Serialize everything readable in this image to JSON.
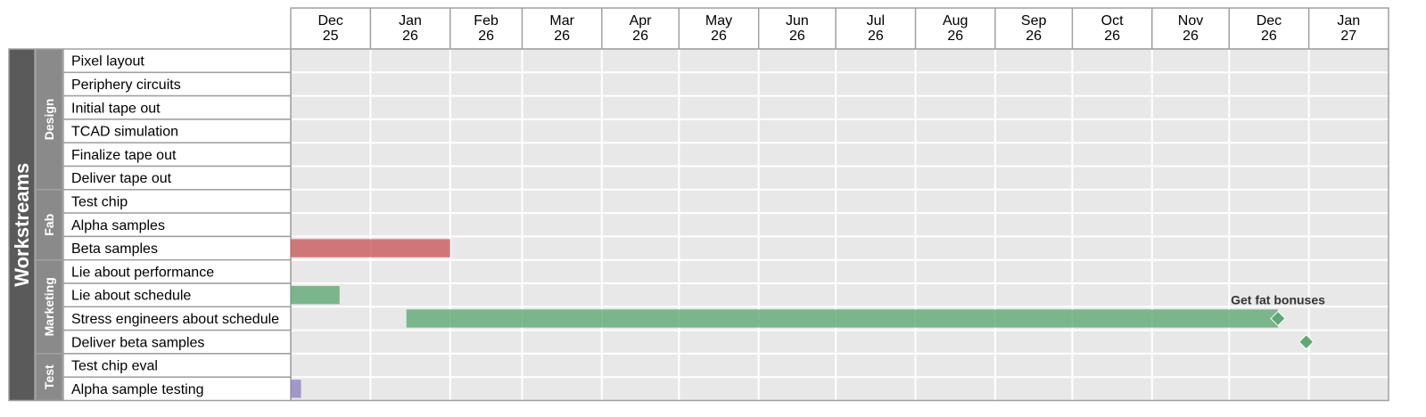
{
  "chart_data": {
    "type": "gantt",
    "top_label": "Workstreams",
    "timeline": {
      "start": "2025-12-01",
      "end": "2027-01-31",
      "ticks": [
        {
          "date": "2025-12-01",
          "month": "Dec",
          "year": "25"
        },
        {
          "date": "2026-01-01",
          "month": "Jan",
          "year": "26"
        },
        {
          "date": "2026-02-01",
          "month": "Feb",
          "year": "26"
        },
        {
          "date": "2026-03-01",
          "month": "Mar",
          "year": "26"
        },
        {
          "date": "2026-04-01",
          "month": "Apr",
          "year": "26"
        },
        {
          "date": "2026-05-01",
          "month": "May",
          "year": "26"
        },
        {
          "date": "2026-06-01",
          "month": "Jun",
          "year": "26"
        },
        {
          "date": "2026-07-01",
          "month": "Jul",
          "year": "26"
        },
        {
          "date": "2026-08-01",
          "month": "Aug",
          "year": "26"
        },
        {
          "date": "2026-09-01",
          "month": "Sep",
          "year": "26"
        },
        {
          "date": "2026-10-01",
          "month": "Oct",
          "year": "26"
        },
        {
          "date": "2026-11-01",
          "month": "Nov",
          "year": "26"
        },
        {
          "date": "2026-12-01",
          "month": "Dec",
          "year": "26"
        },
        {
          "date": "2027-01-01",
          "month": "Jan",
          "year": "27"
        }
      ]
    },
    "groups": [
      {
        "name": "Design",
        "tasks": [
          "Pixel layout",
          "Periphery circuits",
          "Initial tape out",
          "TCAD simulation",
          "Finalize tape out",
          "Deliver tape out"
        ]
      },
      {
        "name": "Fab",
        "tasks": [
          "Test chip",
          "Alpha samples",
          "Beta samples"
        ]
      },
      {
        "name": "Marketing",
        "tasks": [
          "Lie about performance",
          "Lie about schedule",
          "Stress engineers about schedule",
          "Deliver beta samples"
        ]
      },
      {
        "name": "Test",
        "tasks": [
          "Test chip eval",
          "Alpha sample testing"
        ]
      }
    ],
    "bars": [
      {
        "task": "Beta samples",
        "start": "2025-12-01",
        "end": "2026-02-01",
        "color": "#c9595d"
      },
      {
        "task": "Lie about schedule",
        "start": "2025-12-01",
        "end": "2025-12-20",
        "color": "#5fa874"
      },
      {
        "task": "Stress engineers about schedule",
        "start": "2026-01-15",
        "end": "2026-12-20",
        "color": "#5fa874"
      },
      {
        "task": "Alpha sample testing",
        "start": "2025-12-01",
        "end": "2025-12-05",
        "color": "#8f82c0"
      }
    ],
    "milestones": [
      {
        "task": "Stress engineers about schedule",
        "date": "2026-12-20",
        "label": "Get fat bonuses",
        "color": "#5fa874"
      },
      {
        "task": "Deliver beta samples",
        "date": "2026-12-31",
        "label": "",
        "color": "#5fa874"
      }
    ],
    "colors": {
      "top_band": "#5a5a5a",
      "group_band": "#8a8a8a",
      "grid_bg": "#e8e8e8",
      "grid_line": "#ffffff",
      "border": "#a0a0a0"
    }
  }
}
